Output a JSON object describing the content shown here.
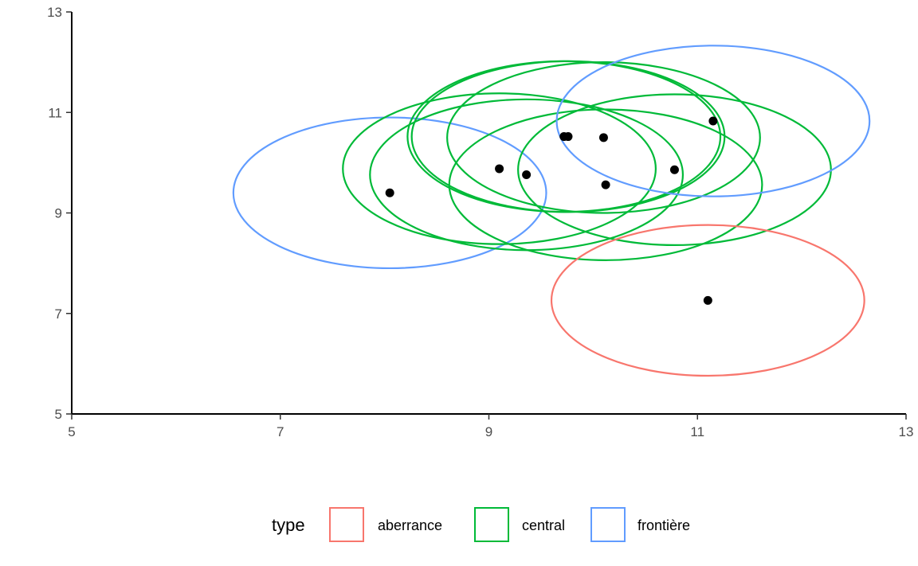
{
  "chart_data": {
    "type": "scatter",
    "xlim": [
      5,
      13
    ],
    "ylim": [
      5,
      13
    ],
    "x_ticks": [
      "5",
      "7",
      "9",
      "11",
      "13"
    ],
    "y_ticks": [
      "5",
      "7",
      "9",
      "11",
      "13"
    ],
    "grid": false,
    "legend_placement": "bottom",
    "points": [
      {
        "x": 8.05,
        "y": 9.4,
        "type": "frontière"
      },
      {
        "x": 9.1,
        "y": 9.88,
        "type": "central"
      },
      {
        "x": 9.36,
        "y": 9.76,
        "type": "central"
      },
      {
        "x": 9.72,
        "y": 10.52,
        "type": "central"
      },
      {
        "x": 9.76,
        "y": 10.52,
        "type": "central"
      },
      {
        "x": 10.1,
        "y": 10.5,
        "type": "central"
      },
      {
        "x": 10.12,
        "y": 9.56,
        "type": "central"
      },
      {
        "x": 10.78,
        "y": 9.86,
        "type": "central"
      },
      {
        "x": 11.15,
        "y": 10.83,
        "type": "frontière"
      },
      {
        "x": 11.1,
        "y": 7.26,
        "type": "aberrance"
      }
    ],
    "ellipses": [
      {
        "cx": 8.05,
        "cy": 9.4,
        "rx": 1.5,
        "ry": 1.5,
        "type": "frontière"
      },
      {
        "cx": 9.1,
        "cy": 9.88,
        "rx": 1.5,
        "ry": 1.5,
        "type": "central"
      },
      {
        "cx": 9.36,
        "cy": 9.76,
        "rx": 1.5,
        "ry": 1.5,
        "type": "central"
      },
      {
        "cx": 9.72,
        "cy": 10.52,
        "rx": 1.5,
        "ry": 1.5,
        "type": "central"
      },
      {
        "cx": 9.76,
        "cy": 10.52,
        "rx": 1.5,
        "ry": 1.5,
        "type": "central"
      },
      {
        "cx": 10.1,
        "cy": 10.5,
        "rx": 1.5,
        "ry": 1.5,
        "type": "central"
      },
      {
        "cx": 10.12,
        "cy": 9.56,
        "rx": 1.5,
        "ry": 1.5,
        "type": "central"
      },
      {
        "cx": 10.78,
        "cy": 9.86,
        "rx": 1.5,
        "ry": 1.5,
        "type": "central"
      },
      {
        "cx": 11.15,
        "cy": 10.83,
        "rx": 1.5,
        "ry": 1.5,
        "type": "frontière"
      },
      {
        "cx": 11.1,
        "cy": 7.26,
        "rx": 1.5,
        "ry": 1.5,
        "type": "aberrance"
      }
    ],
    "colors": {
      "aberrance": "#F8766D",
      "central": "#00BA38",
      "frontière": "#619CFF",
      "point": "#000000"
    },
    "legend": {
      "title": "type",
      "entries": [
        "aberrance",
        "central",
        "frontière"
      ]
    }
  }
}
